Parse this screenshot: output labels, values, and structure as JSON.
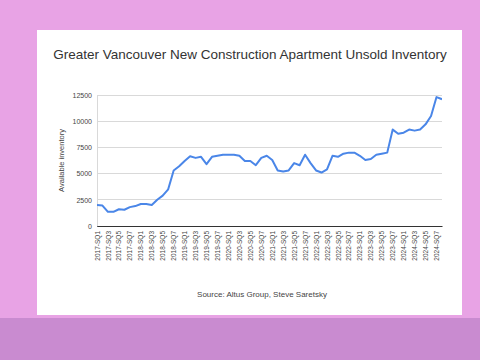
{
  "chart_data": {
    "type": "line",
    "title": "Greater Vancouver New Construction Apartment Unsold Inventory",
    "y_label": "Available inventory",
    "source": "Source: Altus Group, Steve Saretsky",
    "categories": [
      "2017-SQ1",
      null,
      "2017-SQ3",
      null,
      "2017-SQ5",
      null,
      "2017-SQ7",
      null,
      "2018-SQ1",
      null,
      "2018-SQ3",
      null,
      "2018-SQ5",
      null,
      "2018-SQ7",
      null,
      "2019-SQ1",
      null,
      "2019-SQ3",
      null,
      "2019-SQ5",
      null,
      "2019-SQ7",
      null,
      "2020-SQ1",
      null,
      "2020-SQ3",
      null,
      "2020-SQ5",
      null,
      "2020-SQ7",
      null,
      "2021-SQ1",
      null,
      "2021-SQ3",
      null,
      "2021-SQ5",
      null,
      "2021-SQ7",
      null,
      "2022-SQ1",
      null,
      "2022-SQ3",
      null,
      "2022-SQ5",
      null,
      "2022-SQ7",
      null,
      "2023-SQ1",
      null,
      "2023-SQ3",
      null,
      "2023-SQ5",
      null,
      "2023-SQ7",
      null,
      "2024-SQ1",
      null,
      "2024-SQ3",
      null,
      "2024-SQ5",
      null,
      "2024-SQ7",
      null
    ],
    "values": [
      2000,
      1950,
      1350,
      1350,
      1600,
      1550,
      1800,
      1900,
      2100,
      2100,
      2000,
      2500,
      2900,
      3500,
      5300,
      5700,
      6200,
      6650,
      6500,
      6600,
      5900,
      6600,
      6700,
      6800,
      6800,
      6800,
      6700,
      6200,
      6200,
      5800,
      6500,
      6700,
      6300,
      5300,
      5200,
      5300,
      6000,
      5800,
      6800,
      6000,
      5300,
      5100,
      5400,
      6700,
      6600,
      6900,
      7000,
      7000,
      6700,
      6300,
      6400,
      6800,
      6900,
      7000,
      9200,
      8800,
      8900,
      9200,
      9100,
      9200,
      9700,
      10500,
      12300,
      12100
    ],
    "color": "#4a86e8",
    "ylim": [
      0,
      12500
    ],
    "yticks": [
      0,
      2500,
      5000,
      7500,
      10000,
      12500
    ],
    "grid": true
  }
}
